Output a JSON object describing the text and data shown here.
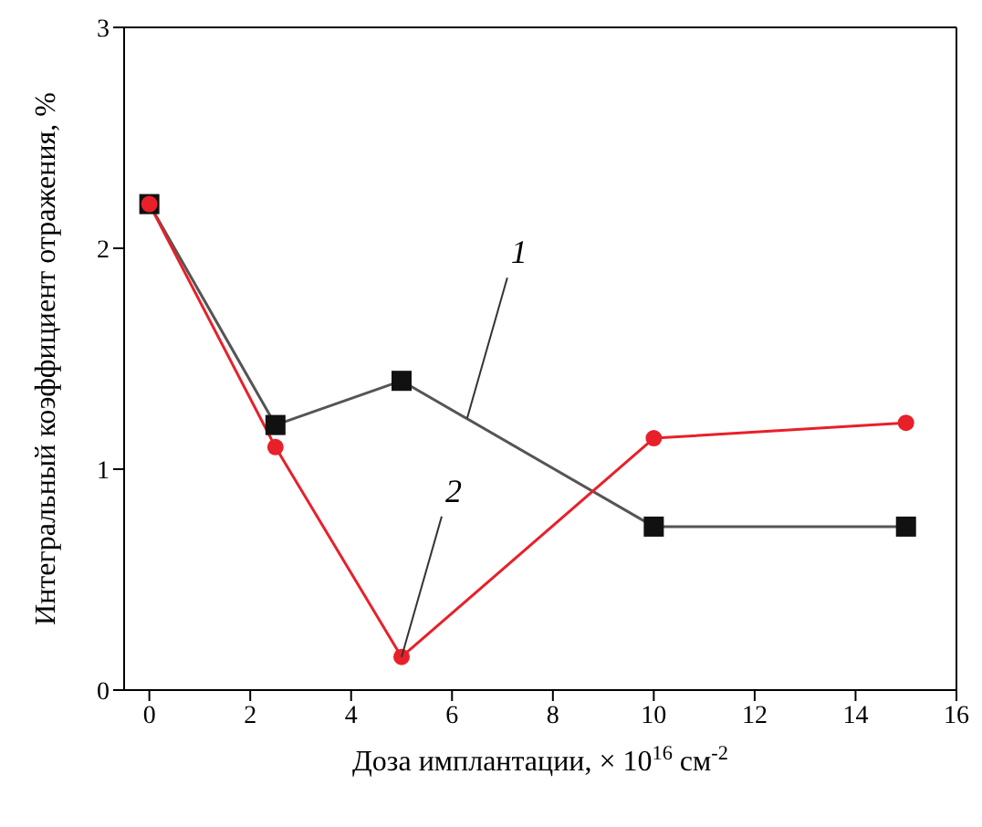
{
  "chart_data": {
    "type": "line",
    "xlabel": "Доза имплантации, × 10$^{16}$ см$^{-2}$",
    "ylabel": "Интегральный коэффициент отражения, %",
    "x": [
      0,
      2.5,
      5,
      10,
      15
    ],
    "series": [
      {
        "color": "#555555",
        "marker": "square",
        "values": [
          2.2,
          1.2,
          1.4,
          0.74,
          0.74
        ]
      },
      {
        "color": "#e8202a",
        "marker": "circle",
        "values": [
          2.2,
          1.1,
          0.15,
          1.14,
          1.21
        ]
      }
    ],
    "xlim": [
      -0.5,
      16
    ],
    "xticks": [
      0,
      2,
      4,
      6,
      8,
      10,
      12,
      14,
      16
    ],
    "ylim": [
      0,
      3
    ],
    "yticks": [
      0,
      1,
      2,
      3
    ],
    "grid": false,
    "legend": false,
    "annotations": [
      {
        "text": "1",
        "x": 6.3,
        "y": 1.23
      },
      {
        "text": "2",
        "x": 5,
        "y": 0.15
      }
    ]
  }
}
